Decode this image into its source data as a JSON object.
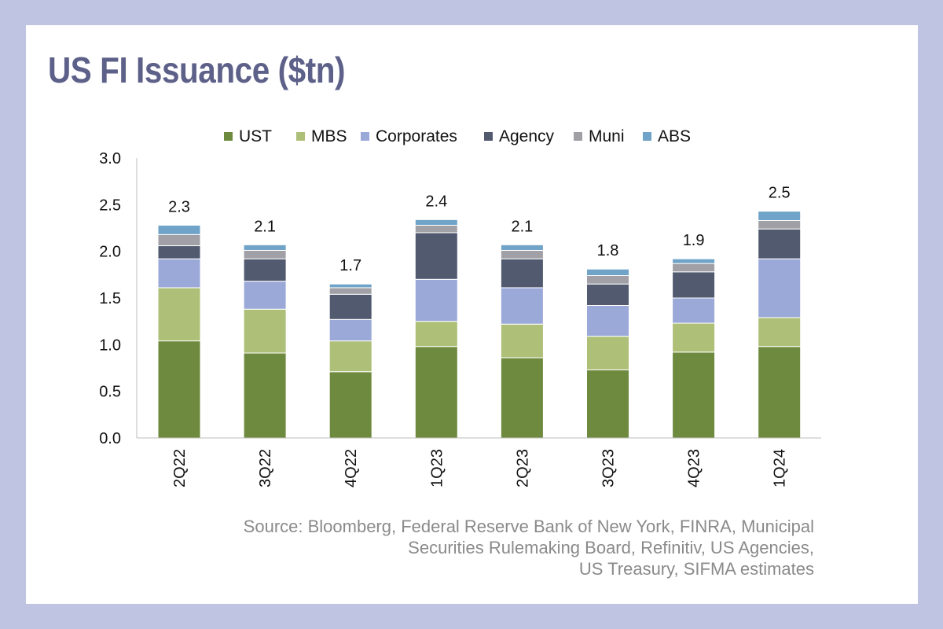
{
  "title": "US FI Issuance ($tn)",
  "source_lines": [
    "Source: Bloomberg, Federal Reserve Bank of New York, FINRA, Municipal",
    "Securities Rulemaking Board, Refinitiv, US Agencies,",
    "US Treasury, SIFMA estimates"
  ],
  "chart_data": {
    "type": "bar",
    "stacked": true,
    "categories": [
      "2Q22",
      "3Q22",
      "4Q22",
      "1Q23",
      "2Q23",
      "3Q23",
      "4Q23",
      "1Q24"
    ],
    "series": [
      {
        "name": "UST",
        "color": "#6e8a3e",
        "values": [
          1.04,
          0.91,
          0.71,
          0.98,
          0.86,
          0.73,
          0.92,
          0.98
        ]
      },
      {
        "name": "MBS",
        "color": "#aebf78",
        "values": [
          0.57,
          0.47,
          0.33,
          0.27,
          0.36,
          0.36,
          0.31,
          0.31
        ]
      },
      {
        "name": "Corporates",
        "color": "#9ba9d9",
        "values": [
          0.31,
          0.3,
          0.23,
          0.45,
          0.39,
          0.33,
          0.27,
          0.63
        ]
      },
      {
        "name": "Agency",
        "color": "#525a70",
        "values": [
          0.14,
          0.24,
          0.27,
          0.5,
          0.31,
          0.23,
          0.28,
          0.32
        ]
      },
      {
        "name": "Muni",
        "color": "#a0a0a6",
        "values": [
          0.12,
          0.09,
          0.07,
          0.08,
          0.09,
          0.09,
          0.09,
          0.09
        ]
      },
      {
        "name": "ABS",
        "color": "#6fa3c7",
        "values": [
          0.1,
          0.06,
          0.04,
          0.06,
          0.06,
          0.07,
          0.05,
          0.1
        ]
      }
    ],
    "totals": [
      "2.3",
      "2.1",
      "1.7",
      "2.4",
      "2.1",
      "1.8",
      "1.9",
      "2.5"
    ],
    "yticks": [
      "0.0",
      "0.5",
      "1.0",
      "1.5",
      "2.0",
      "2.5",
      "3.0"
    ],
    "ylim": [
      0,
      3.0
    ],
    "xlabel": "",
    "ylabel": "",
    "legend_position": "top",
    "grid": false
  }
}
